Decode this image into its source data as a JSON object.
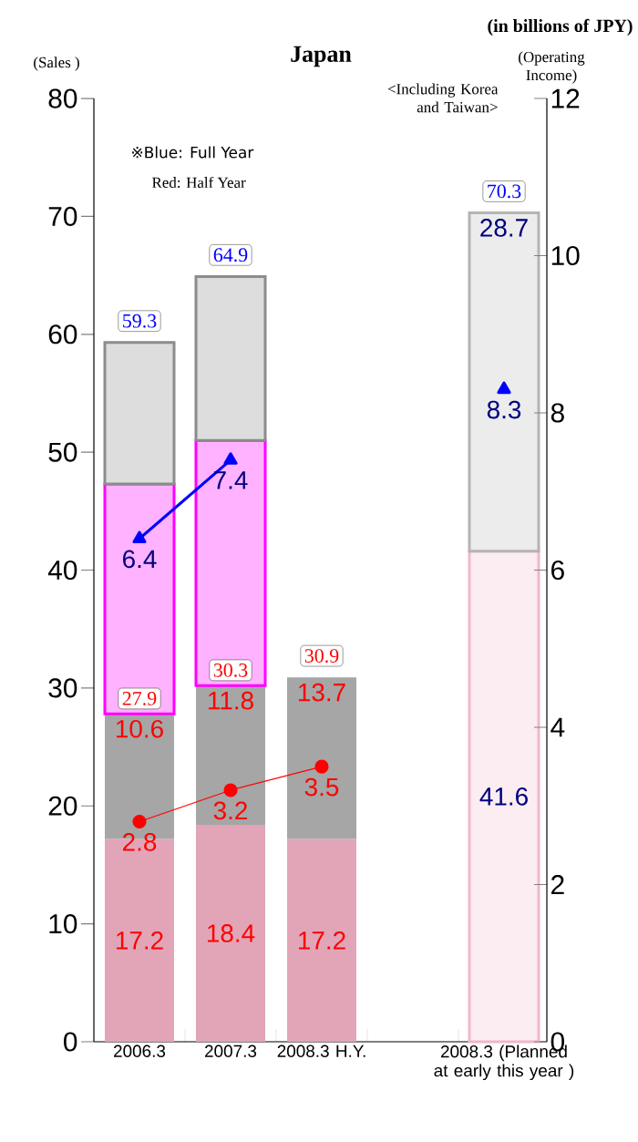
{
  "chart_data": {
    "type": "bar",
    "stacked": true,
    "title": "Japan",
    "subtitle": "<Including Korea and Taiwan>",
    "ylabel": "(Sales )",
    "y2label": "(Operating Income)",
    "categories": [
      "2006.3",
      "2007.3",
      "2008.3 H.Y.",
      null,
      "2008.3 (Planned at early this year )"
    ],
    "series": [
      {
        "colors": [
          "#e2a5b8",
          "#e2a5b8",
          "#e2a5b8",
          "#e2a5b8",
          "#f0b8c8"
        ],
        "values": [
          17.2,
          18.4,
          17.2,
          null,
          41.6
        ],
        "value_labels": [
          "17.2",
          "18.4",
          "17.2",
          null,
          "41.6"
        ]
      },
      {
        "colors": [
          "#a6a6a6",
          "#a6a6a6",
          "#a6a6a6",
          "#a6a6a6",
          "#b4b4b4"
        ],
        "values": [
          10.6,
          11.8,
          13.7,
          null,
          28.7
        ],
        "value_labels": [
          "10.6",
          "11.8",
          "13.7",
          null,
          "28.7"
        ]
      },
      {
        "color": "#ff00ff",
        "values": [
          19.5,
          20.8,
          null,
          null,
          null
        ]
      },
      {
        "color": "#8c8c8c",
        "values": [
          12.0,
          13.9,
          null,
          null,
          null
        ]
      },
      {
        "type": "line",
        "axis": "y2",
        "color": "#0000ff",
        "marker": "triangle",
        "values": [
          6.4,
          7.4,
          null,
          null,
          8.3
        ],
        "value_labels": [
          "6.4",
          "7.4",
          null,
          null,
          "8.3"
        ]
      },
      {
        "type": "line",
        "axis": "y2",
        "color": "#ff0000",
        "marker": "circle",
        "values": [
          2.8,
          3.2,
          3.5,
          null,
          null
        ],
        "value_labels": [
          "2.8",
          "3.2",
          "3.5",
          null,
          null
        ]
      }
    ],
    "totals": [
      "59.3",
      "64.9",
      "30.9",
      null,
      "70.3"
    ],
    "ylim": [
      0,
      80
    ],
    "yticks": [
      0,
      10,
      20,
      30,
      40,
      50,
      60,
      70,
      80
    ],
    "y2lim": [
      0,
      12
    ],
    "y2ticks": [
      0,
      2,
      4,
      6,
      8,
      10,
      12
    ],
    "annotations": [
      "(in billions of JPY)",
      "※Blue: Full Year",
      "Red: Half Year",
      {
        "text": "27.9",
        "x": "2006.3",
        "y": 27.9
      },
      {
        "text": "30.3",
        "x": "2007.3",
        "y": 30.3
      }
    ]
  }
}
